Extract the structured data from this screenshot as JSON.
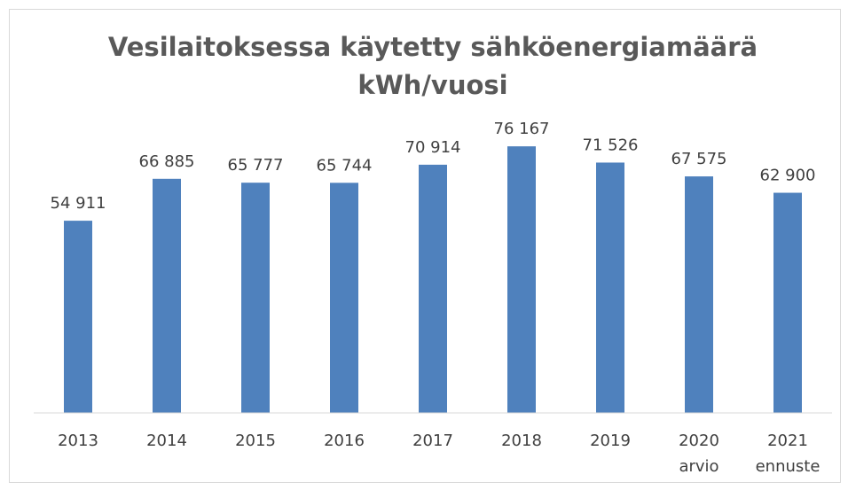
{
  "chart_data": {
    "type": "bar",
    "title": "Vesilaitoksessa käytetty sähköenergiamäärä kWh/vuosi",
    "categories": [
      "2013",
      "2014",
      "2015",
      "2016",
      "2017",
      "2018",
      "2019",
      "2020 arvio",
      "2021 ennuste"
    ],
    "values": [
      54911,
      66885,
      65777,
      65744,
      70914,
      76167,
      71526,
      67575,
      62900
    ],
    "value_labels": [
      "54 911",
      "66 885",
      "65 777",
      "65 744",
      "70 914",
      "76 167",
      "71 526",
      "67 575",
      "62 900"
    ],
    "color": "#4f81bd",
    "ylim": [
      0,
      80000
    ]
  }
}
